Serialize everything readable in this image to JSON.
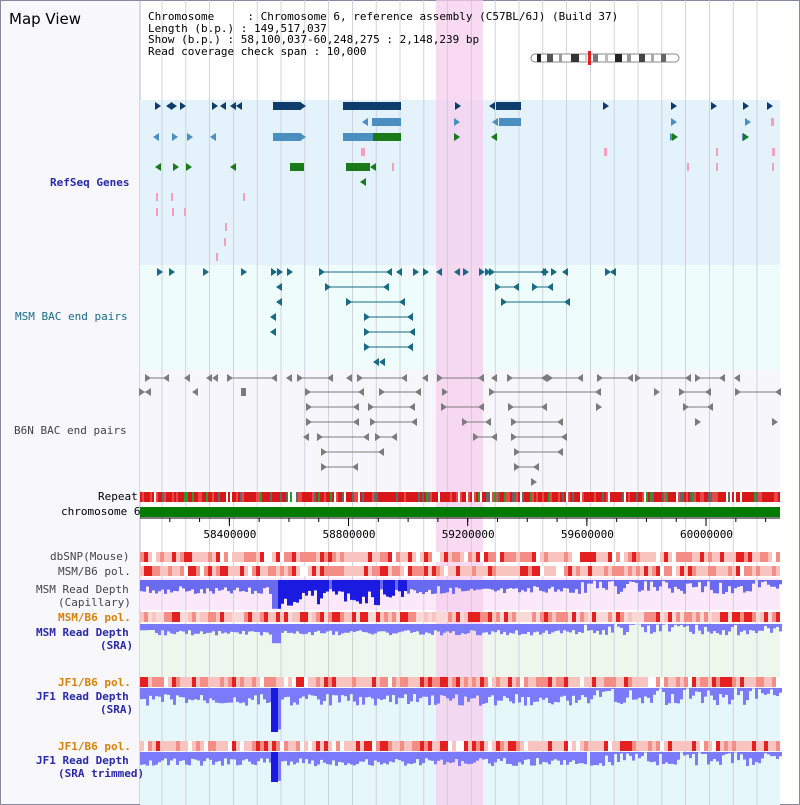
{
  "view_title": "Map View",
  "info": {
    "chromosome": "Chromosome     : Chromosome 6, reference assembly (C57BL/6J) (Build 37)",
    "length": "Length (b.p.) : 149,517,037",
    "show": "Show (b.p.) : 58,100,037-60,248,275 : 2,148,239 bp",
    "coverage": "Read coverage check span : 10,000"
  },
  "tracks": {
    "refseq": "RefSeq Genes",
    "msm_bac": "MSM BAC end pairs",
    "b6n_bac": "B6N BAC end pairs",
    "repeat": "Repeat",
    "chromosome": "chromosome 6",
    "dbsnp": "dbSNP(Mouse)",
    "msm_b6_pol_1": "MSM/B6 pol.",
    "msm_depth_cap_1": "MSM Read Depth",
    "msm_depth_cap_2": "(Capillary)",
    "msm_b6_pol_2": "MSM/B6 pol.",
    "msm_depth_sra_1": "MSM Read Depth",
    "msm_depth_sra_2": "(SRA)",
    "jf1_b6_pol_1": "JF1/B6 pol.",
    "jf1_depth_sra_1": "JF1 Read Depth",
    "jf1_depth_sra_2": "(SRA)",
    "jf1_b6_pol_2": "JF1/B6 pol.",
    "jf1_depth_trim_1": "JF1 Read Depth",
    "jf1_depth_trim_2": "(SRA trimmed)"
  },
  "axis": {
    "ticks": [
      "58400000",
      "58800000",
      "59200000",
      "59600000",
      "60000000"
    ],
    "tick_values": [
      58400000,
      58800000,
      59200000,
      59600000,
      60000000
    ],
    "start": 58100037,
    "end": 60248275
  },
  "colors": {
    "refseq_bg": "#e3f2fb",
    "bac_bg": "#eefcfb",
    "b6n_bg": "#f7f7fb",
    "highlight": "#f5cdee",
    "gene_navy": "#0e3c6b",
    "gene_blue": "#4a8fc0",
    "gene_green": "#1a7a1a",
    "gene_pink": "#f4a0bc",
    "bac_teal": "#176a82",
    "b6n_grey": "#7c7c7c",
    "chrom_green": "#007a00",
    "depth_blue": "#7a7afa"
  }
}
